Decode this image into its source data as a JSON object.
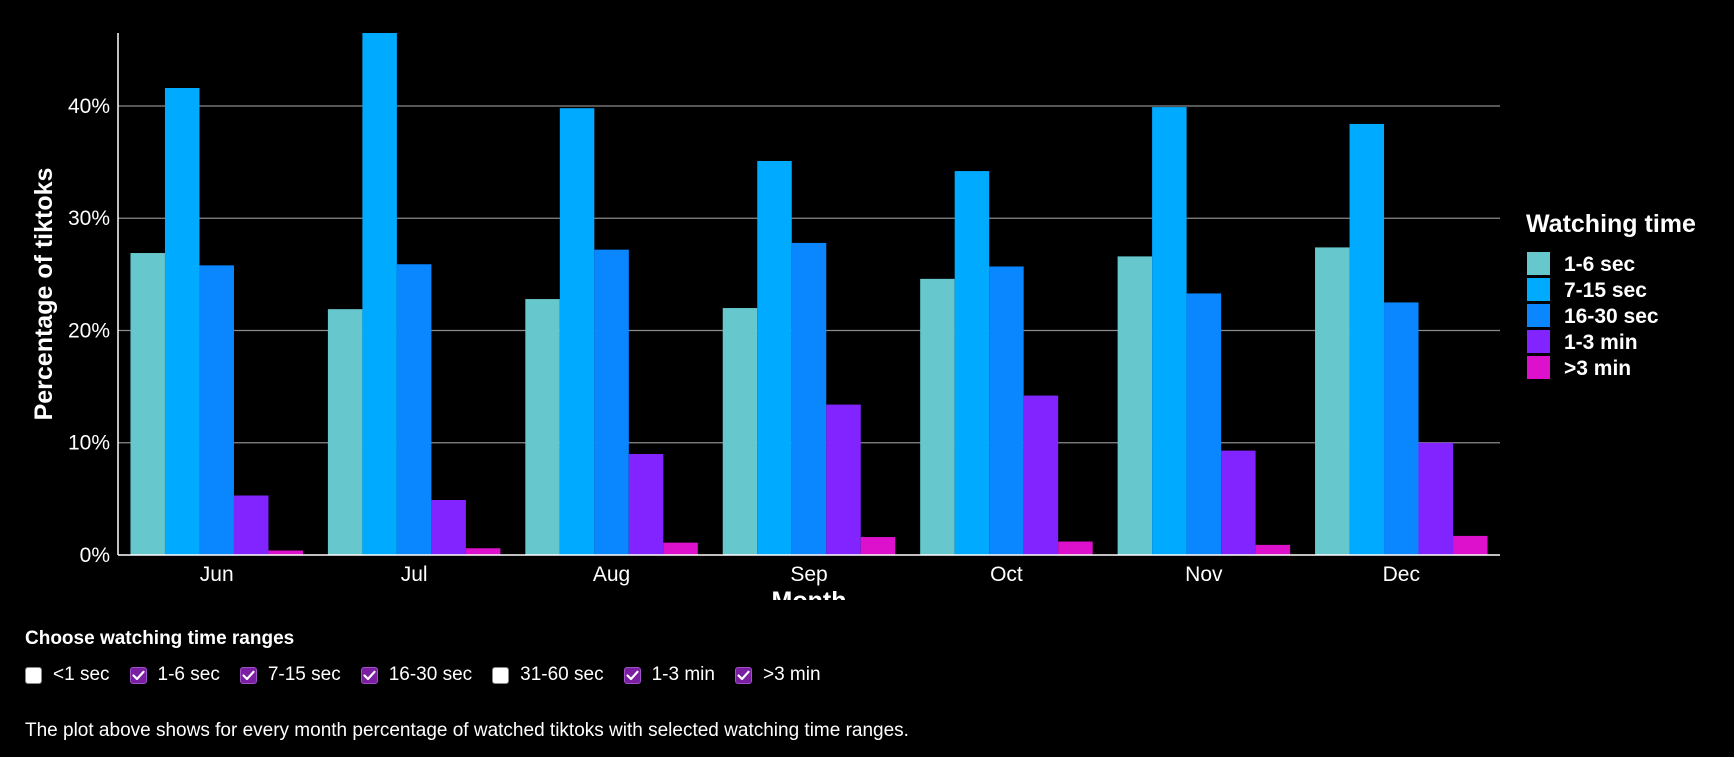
{
  "chart_data": {
    "type": "bar",
    "title": "",
    "xlabel": "Month",
    "ylabel": "Percentage of tiktoks",
    "categories": [
      "Jun",
      "Jul",
      "Aug",
      "Sep",
      "Oct",
      "Nov",
      "Dec"
    ],
    "ylim": [
      0,
      46.5
    ],
    "yticks": [
      0,
      10,
      20,
      30,
      40
    ],
    "ytick_labels": [
      "0%",
      "10%",
      "20%",
      "30%",
      "40%"
    ],
    "grid": "horizontal",
    "legend_title": "Watching time",
    "legend_position": "right",
    "series": [
      {
        "name": "1-6 sec",
        "color": "#66c7cc",
        "values": [
          26.9,
          21.9,
          22.8,
          22.0,
          24.6,
          26.6,
          27.4
        ]
      },
      {
        "name": "7-15 sec",
        "color": "#00aaff",
        "values": [
          41.6,
          46.5,
          39.8,
          35.1,
          34.2,
          39.9,
          38.4
        ]
      },
      {
        "name": "16-30 sec",
        "color": "#0a86ff",
        "values": [
          25.8,
          25.9,
          27.2,
          27.8,
          25.7,
          23.3,
          22.5
        ]
      },
      {
        "name": "1-3 min",
        "color": "#8224ff",
        "values": [
          5.3,
          4.9,
          9.0,
          13.4,
          14.2,
          9.3,
          10.0
        ]
      },
      {
        "name": ">3 min",
        "color": "#dd11cc",
        "values": [
          0.4,
          0.6,
          1.1,
          1.6,
          1.2,
          0.9,
          1.7
        ]
      }
    ]
  },
  "controls": {
    "title": "Choose watching time ranges",
    "options": [
      {
        "label": "<1 sec",
        "checked": false
      },
      {
        "label": "1-6 sec",
        "checked": true
      },
      {
        "label": "7-15 sec",
        "checked": true
      },
      {
        "label": "16-30 sec",
        "checked": true
      },
      {
        "label": "31-60 sec",
        "checked": false
      },
      {
        "label": "1-3 min",
        "checked": true
      },
      {
        "label": ">3 min",
        "checked": true
      }
    ]
  },
  "note": "The plot above shows for every month percentage of watched tiktoks with selected watching time ranges."
}
